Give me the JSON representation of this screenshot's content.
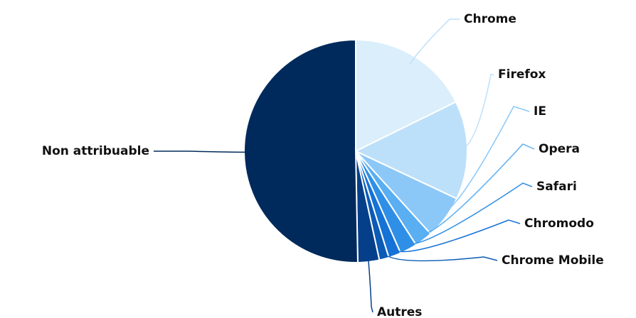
{
  "chart_data": {
    "type": "pie",
    "categories": [
      "Chrome",
      "Firefox",
      "IE",
      "Opera",
      "Safari",
      "Chromodo",
      "Chrome Mobile",
      "Autres",
      "Non attribuable"
    ],
    "values": [
      17.7,
      14.3,
      6.3,
      2.6,
      2.5,
      1.8,
      1.4,
      3.1,
      50.3
    ],
    "colors": [
      "#daeefb",
      "#bde0fa",
      "#8cc8f7",
      "#5aaef2",
      "#2f8fe6",
      "#1572d6",
      "#0c5bb5",
      "#053f8a",
      "#002a5c"
    ]
  }
}
